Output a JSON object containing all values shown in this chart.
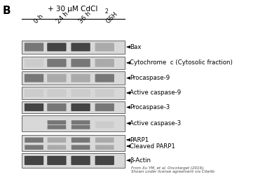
{
  "panel_label": "B",
  "title": "+ 30 μM CdCl₂",
  "col_labels": [
    "0 h",
    "24 h",
    "36 h",
    "GSH"
  ],
  "row_labels": [
    "Bax",
    "Cytochrome  σ (Cytosolic fraction)",
    "Procaspase-9",
    "Active caspase-9",
    "Procaspase-3",
    "Active caspase-3",
    "PARP1\nCleaved PARP1",
    "β-Actin"
  ],
  "row_labels_display": [
    "Bax",
    "Cytochrome  c (Cytosolic fraction)",
    "Procaspase-9",
    "Active caspase-9",
    "Procaspase-3",
    "Active caspase-3",
    "PARP1",
    "Cleaved PARP1",
    "β-Actin"
  ],
  "citation": "From Xu YM, et al. Oncotarget (2016).\nShown under license agreement via CiteAb",
  "bg_color": "#f0f0f0",
  "band_color_dark": "#555555",
  "band_color_light": "#aaaaaa",
  "band_color_very_light": "#cccccc",
  "figure_bg": "#ffffff"
}
